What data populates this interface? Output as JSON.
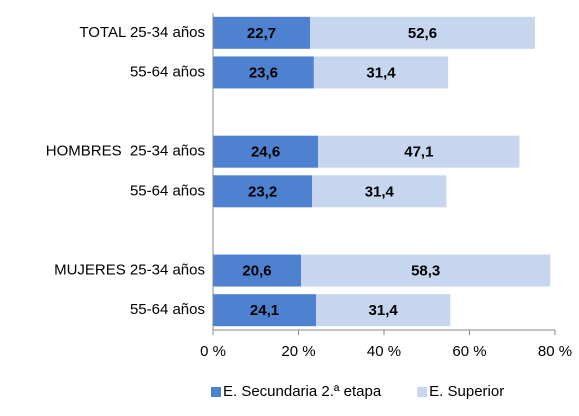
{
  "chart_data": {
    "type": "stacked-bar-horizontal",
    "categories": [
      "TOTAL 25-34 años",
      "55-64 años",
      null,
      "HOMBRES  25-34 años",
      "55-64 años",
      null,
      "MUJERES 25-34 años",
      "55-64 años"
    ],
    "series": [
      {
        "name": "E. Secundaria 2.ª etapa",
        "color": "#4f81d1",
        "values": [
          22.7,
          23.6,
          null,
          24.6,
          23.2,
          null,
          20.6,
          24.1
        ],
        "value_labels": [
          "22,7",
          "23,6",
          null,
          "24,6",
          "23,2",
          null,
          "20,6",
          "24,1"
        ]
      },
      {
        "name": "E. Superior",
        "color": "#c6d6ef",
        "values": [
          52.6,
          31.4,
          null,
          47.1,
          31.4,
          null,
          58.3,
          31.4
        ],
        "value_labels": [
          "52,6",
          "31,4",
          null,
          "47,1",
          "31,4",
          null,
          "58,3",
          "31,4"
        ]
      }
    ],
    "xlim": [
      0,
      80
    ],
    "xticks": [
      {
        "value": 0,
        "label": "0 %"
      },
      {
        "value": 20,
        "label": "20 %"
      },
      {
        "value": 40,
        "label": "40 %"
      },
      {
        "value": 60,
        "label": "60 %"
      },
      {
        "value": 80,
        "label": "80 %"
      }
    ],
    "legend": "bottom"
  }
}
